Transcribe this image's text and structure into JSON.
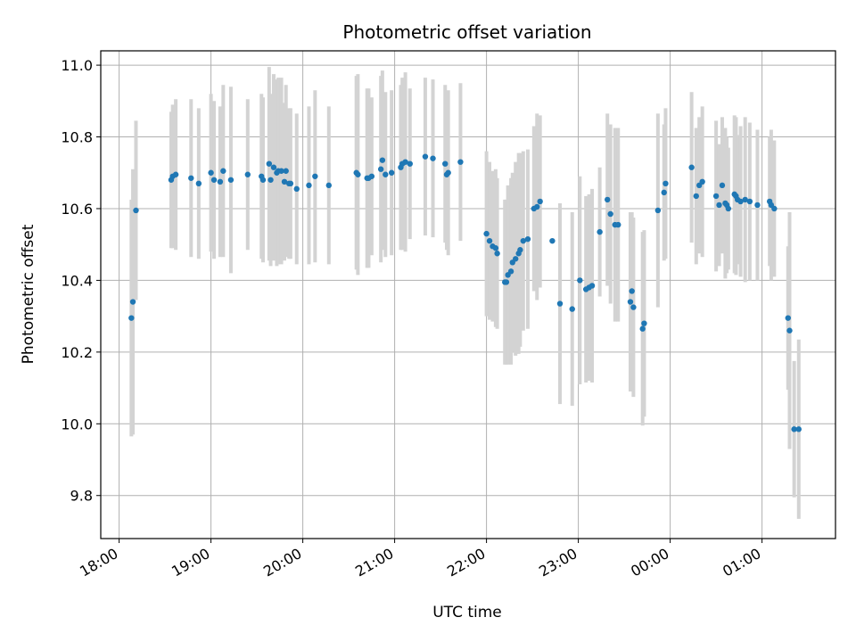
{
  "chart_data": {
    "type": "scatter",
    "title": "Photometric offset variation",
    "xlabel": "UTC time",
    "ylabel": "Photometric offset",
    "x_axis": {
      "kind": "time",
      "range_hours": [
        17.8,
        25.8
      ],
      "ticks_hours": [
        18,
        19,
        20,
        21,
        22,
        23,
        24,
        25
      ],
      "tick_labels": [
        "18:00",
        "19:00",
        "20:00",
        "21:00",
        "22:00",
        "23:00",
        "00:00",
        "01:00"
      ]
    },
    "y_axis": {
      "range": [
        9.68,
        11.04
      ],
      "ticks": [
        9.8,
        10.0,
        10.2,
        10.4,
        10.6,
        10.8,
        11.0
      ],
      "tick_labels": [
        "9.8",
        "10.0",
        "10.2",
        "10.4",
        "10.6",
        "10.8",
        "11.0"
      ]
    },
    "grid": true,
    "colors": {
      "points": "#1f77b4",
      "error_bars": "#d3d3d3",
      "grid": "#b0b0b0"
    },
    "series": [
      {
        "marker": "dot",
        "x_time": [
          "18:08",
          "18:09",
          "18:11",
          "18:34",
          "18:35",
          "18:37",
          "18:47",
          "18:52",
          "19:00",
          "19:02",
          "19:06",
          "19:08",
          "19:13",
          "19:24",
          "19:33",
          "19:34",
          "19:38",
          "19:39",
          "19:41",
          "19:43",
          "19:44",
          "19:46",
          "19:48",
          "19:49",
          "19:51",
          "19:52",
          "19:56",
          "20:04",
          "20:08",
          "20:17",
          "20:35",
          "20:36",
          "20:42",
          "20:43",
          "20:45",
          "20:51",
          "20:52",
          "20:54",
          "20:58",
          "21:04",
          "21:05",
          "21:07",
          "21:10",
          "21:20",
          "21:25",
          "21:33",
          "21:34",
          "21:35",
          "21:43",
          "22:00",
          "22:02",
          "22:04",
          "22:06",
          "22:07",
          "22:12",
          "22:13",
          "22:14",
          "22:16",
          "22:17",
          "22:19",
          "22:21",
          "22:22",
          "22:24",
          "22:27",
          "22:31",
          "22:33",
          "22:35",
          "22:43",
          "22:48",
          "22:56",
          "23:01",
          "23:05",
          "23:07",
          "23:09",
          "23:14",
          "23:19",
          "23:21",
          "23:24",
          "23:26",
          "23:34",
          "23:35",
          "23:36",
          "23:42",
          "23:43",
          "23:52",
          "23:56",
          "23:57",
          "24:14",
          "24:17",
          "24:19",
          "24:21",
          "24:30",
          "24:32",
          "24:34",
          "24:36",
          "24:37",
          "24:38",
          "24:42",
          "24:43",
          "24:44",
          "24:46",
          "24:49",
          "24:52",
          "24:57",
          "25:05",
          "25:06",
          "25:08",
          "25:17",
          "25:18",
          "25:21",
          "25:24"
        ],
        "y": [
          10.295,
          10.34,
          10.595,
          10.68,
          10.69,
          10.695,
          10.685,
          10.67,
          10.7,
          10.68,
          10.675,
          10.705,
          10.68,
          10.695,
          10.69,
          10.68,
          10.725,
          10.68,
          10.715,
          10.7,
          10.705,
          10.705,
          10.675,
          10.705,
          10.67,
          10.67,
          10.655,
          10.665,
          10.69,
          10.665,
          10.7,
          10.695,
          10.685,
          10.685,
          10.69,
          10.71,
          10.735,
          10.695,
          10.7,
          10.715,
          10.725,
          10.73,
          10.725,
          10.745,
          10.74,
          10.725,
          10.695,
          10.7,
          10.73,
          10.53,
          10.51,
          10.495,
          10.49,
          10.475,
          10.395,
          10.395,
          10.415,
          10.425,
          10.45,
          10.46,
          10.475,
          10.485,
          10.51,
          10.515,
          10.6,
          10.605,
          10.62,
          10.51,
          10.335,
          10.32,
          10.4,
          10.375,
          10.38,
          10.385,
          10.535,
          10.625,
          10.585,
          10.555,
          10.555,
          10.34,
          10.37,
          10.325,
          10.265,
          10.28,
          10.595,
          10.645,
          10.67,
          10.715,
          10.635,
          10.665,
          10.675,
          10.635,
          10.61,
          10.665,
          10.615,
          10.61,
          10.6,
          10.64,
          10.635,
          10.625,
          10.62,
          10.625,
          10.62,
          10.61,
          10.62,
          10.61,
          10.6,
          10.295,
          10.26,
          9.985,
          9.985
        ],
        "error": [
          0.33,
          0.37,
          0.25,
          0.19,
          0.2,
          0.21,
          0.22,
          0.21,
          0.22,
          0.22,
          0.21,
          0.24,
          0.26,
          0.21,
          0.23,
          0.23,
          0.27,
          0.24,
          0.26,
          0.26,
          0.26,
          0.26,
          0.22,
          0.24,
          0.21,
          0.21,
          0.21,
          0.22,
          0.24,
          0.22,
          0.27,
          0.28,
          0.25,
          0.25,
          0.22,
          0.26,
          0.25,
          0.23,
          0.23,
          0.23,
          0.24,
          0.25,
          0.21,
          0.22,
          0.22,
          0.22,
          0.21,
          0.23,
          0.22,
          0.23,
          0.22,
          0.21,
          0.22,
          0.21,
          0.23,
          0.23,
          0.25,
          0.26,
          0.25,
          0.27,
          0.28,
          0.27,
          0.25,
          0.25,
          0.23,
          0.26,
          0.24,
          0.0,
          0.28,
          0.27,
          0.29,
          0.26,
          0.26,
          0.27,
          0.18,
          0.24,
          0.25,
          0.27,
          0.27,
          0.25,
          0.22,
          0.25,
          0.27,
          0.26,
          0.27,
          0.19,
          0.21,
          0.21,
          0.19,
          0.19,
          0.21,
          0.21,
          0.17,
          0.19,
          0.21,
          0.19,
          0.17,
          0.22,
          0.22,
          0.18,
          0.21,
          0.23,
          0.22,
          0.21,
          0.18,
          0.21,
          0.19,
          0.2,
          0.33,
          0.19,
          0.25
        ]
      }
    ]
  }
}
